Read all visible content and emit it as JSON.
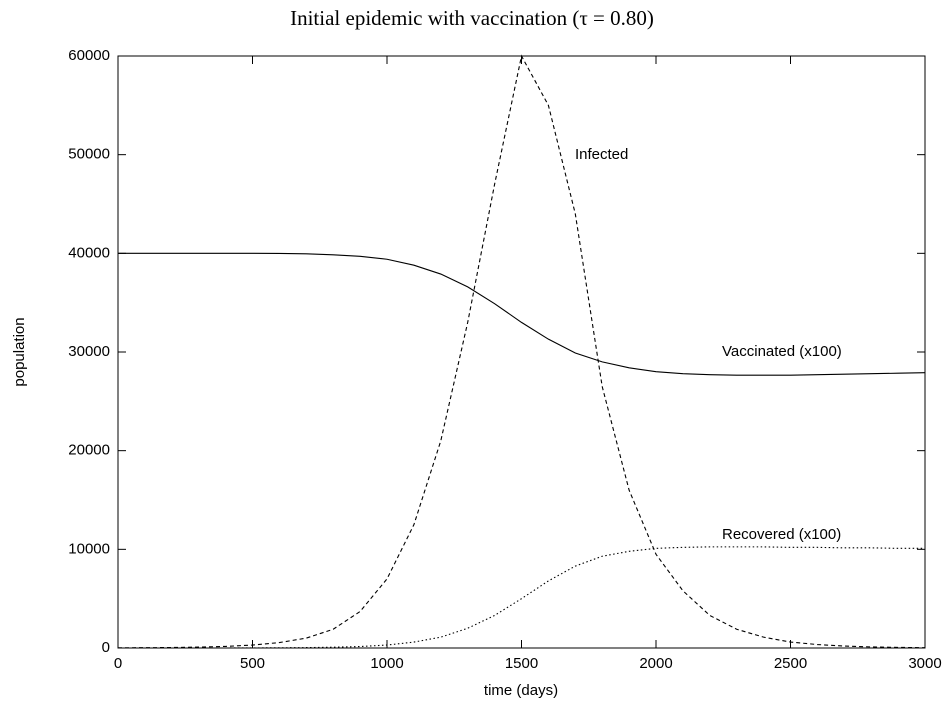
{
  "chart_data": {
    "type": "line",
    "title": "Initial epidemic with vaccination (τ = 0.80)",
    "x_label": "time (days)",
    "y_label": "population",
    "x": [
      0,
      100,
      200,
      300,
      400,
      500,
      600,
      700,
      800,
      900,
      1000,
      1100,
      1200,
      1300,
      1400,
      1500,
      1600,
      1700,
      1800,
      1900,
      2000,
      2100,
      2200,
      2300,
      2400,
      2500,
      2600,
      2700,
      2800,
      2900,
      3000
    ],
    "series": [
      {
        "name": "Infected",
        "color": "#000000",
        "dash": "4,3",
        "values": [
          20,
          30,
          50,
          90,
          160,
          300,
          550,
          1000,
          1900,
          3700,
          7000,
          12500,
          21000,
          33000,
          47000,
          60000,
          55000,
          44000,
          26500,
          16000,
          9500,
          5800,
          3300,
          1900,
          1100,
          600,
          350,
          200,
          110,
          60,
          30
        ]
      },
      {
        "name": "Vaccinated (x100)",
        "color": "#000000",
        "dash": "none",
        "values": [
          40000,
          40000,
          40000,
          40000,
          40000,
          40000,
          39990,
          39950,
          39850,
          39700,
          39400,
          38800,
          37900,
          36600,
          34900,
          33000,
          31300,
          29900,
          29000,
          28400,
          28000,
          27800,
          27700,
          27650,
          27650,
          27650,
          27700,
          27750,
          27800,
          27850,
          27900
        ]
      },
      {
        "name": "Recovered (x100)",
        "color": "#000000",
        "dash": "1.5,2.5",
        "values": [
          0,
          0,
          0,
          0,
          0,
          10,
          20,
          40,
          80,
          150,
          300,
          600,
          1100,
          2000,
          3300,
          5000,
          6800,
          8300,
          9300,
          9800,
          10100,
          10200,
          10250,
          10250,
          10250,
          10200,
          10200,
          10150,
          10150,
          10100,
          10100
        ]
      }
    ],
    "xlim": [
      0,
      3000
    ],
    "ylim": [
      0,
      60000
    ],
    "xticks": [
      0,
      500,
      1000,
      1500,
      2000,
      2500,
      3000
    ],
    "yticks": [
      0,
      10000,
      20000,
      30000,
      40000,
      50000,
      60000
    ],
    "grid": false
  }
}
